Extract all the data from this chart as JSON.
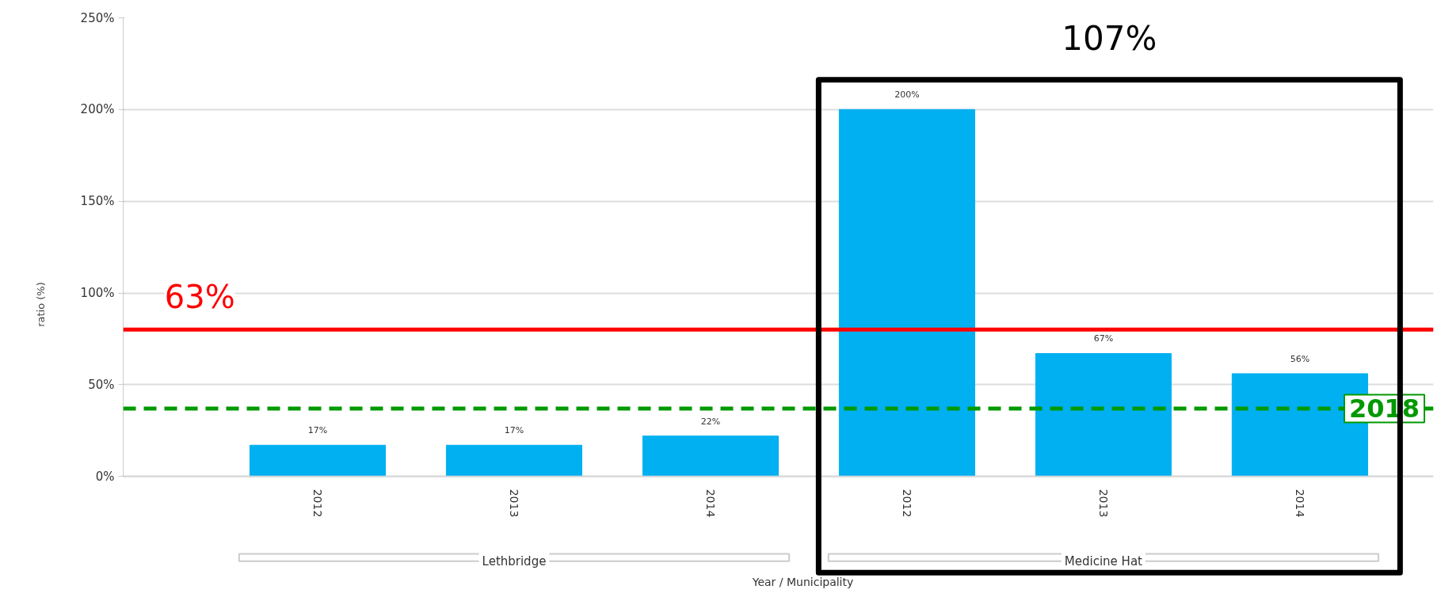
{
  "chart_data": {
    "type": "bar",
    "ylabel": "ratio (%)",
    "categories": [
      "2012",
      "2013",
      "2014",
      "2012",
      "2013",
      "2014"
    ],
    "values": [
      17,
      17,
      22,
      200,
      67,
      56
    ],
    "color": "#00b0f0",
    "value_labels": [
      "17%",
      "17%",
      "22%",
      "200%",
      "67%",
      "56%"
    ],
    "ylim": [
      0,
      250
    ],
    "yticks": [
      {
        "value": 0,
        "label": "0%"
      },
      {
        "value": 50,
        "label": "50%"
      },
      {
        "value": 100,
        "label": "100%"
      },
      {
        "value": 150,
        "label": "150%"
      },
      {
        "value": 200,
        "label": "200%"
      },
      {
        "value": 250,
        "label": "250%"
      }
    ],
    "grid": "y",
    "ref_lines": [
      {
        "axis": "y",
        "value": 80,
        "color": "#ff0000",
        "line_style": "solid"
      },
      {
        "axis": "y",
        "value": 37,
        "color": "#009900",
        "line_style": "dashed"
      }
    ],
    "annotations": [
      "107%",
      "Year / Municipality",
      {
        "text": "63%",
        "y": 80
      },
      {
        "text": "2018",
        "y": 37
      },
      "Lethbridge",
      "Medicine Hat"
    ]
  }
}
